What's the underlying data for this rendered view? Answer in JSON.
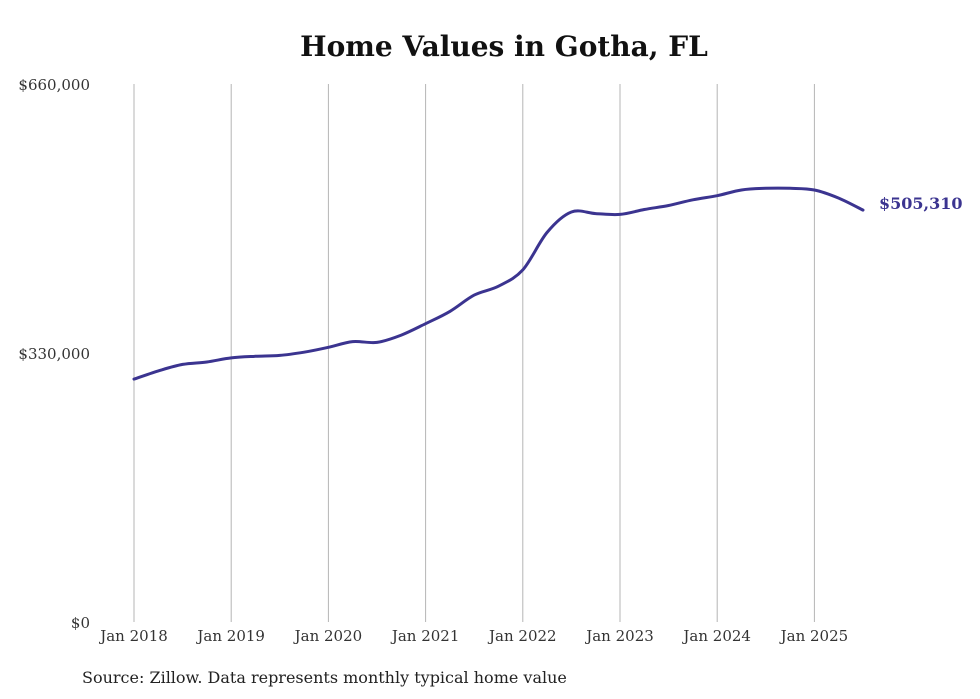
{
  "chart_data": {
    "type": "line",
    "title": "Home Values in Gotha, FL",
    "source": "Source: Zillow. Data represents monthly typical home value",
    "ylim": [
      0,
      660000
    ],
    "y_ticks": [
      "$660,000",
      "$330,000",
      "$0"
    ],
    "y_tick_values": [
      660000,
      330000,
      0
    ],
    "x_ticks": [
      "Jan 2018",
      "Jan 2019",
      "Jan 2020",
      "Jan 2021",
      "Jan 2022",
      "Jan 2023",
      "Jan 2024",
      "Jan 2025"
    ],
    "grid": "vertical",
    "line_color": "#3b3490",
    "end_label": "$505,310",
    "series": [
      {
        "x": [
          "2018-01",
          "2018-04",
          "2018-07",
          "2018-10",
          "2019-01",
          "2019-04",
          "2019-07",
          "2019-10",
          "2020-01",
          "2020-04",
          "2020-07",
          "2020-10",
          "2021-01",
          "2021-04",
          "2021-07",
          "2021-10",
          "2022-01",
          "2022-04",
          "2022-07",
          "2022-10",
          "2023-01",
          "2023-04",
          "2023-07",
          "2023-10",
          "2024-01",
          "2024-04",
          "2024-07",
          "2024-10",
          "2025-01",
          "2025-04",
          "2025-07"
        ],
        "values": [
          298000,
          308000,
          316000,
          319000,
          324000,
          326000,
          327000,
          331000,
          337000,
          344000,
          343000,
          352000,
          366000,
          381000,
          401000,
          412000,
          432000,
          478000,
          503000,
          501000,
          500000,
          506000,
          511000,
          518000,
          523000,
          530000,
          532000,
          532000,
          530000,
          520000,
          505310
        ]
      }
    ]
  }
}
